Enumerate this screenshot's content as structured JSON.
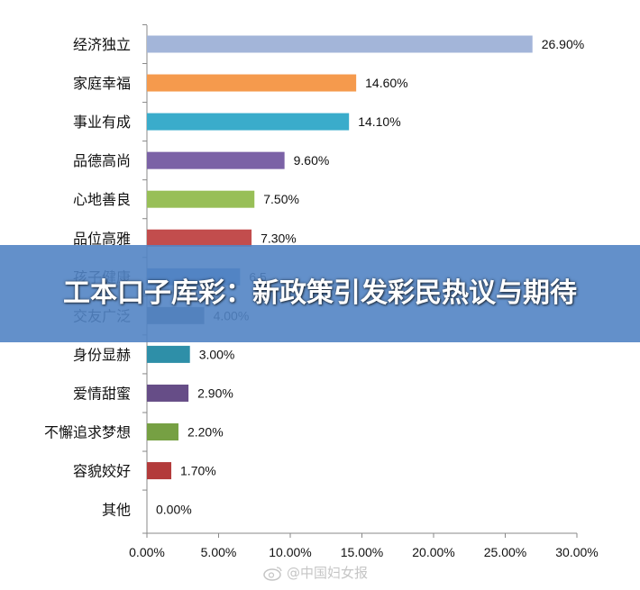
{
  "chart_data": {
    "type": "bar",
    "orientation": "horizontal",
    "categories": [
      "经济独立",
      "家庭幸福",
      "事业有成",
      "品德高尚",
      "心地善良",
      "品位高雅",
      "孩子健康",
      "交友广泛",
      "身份显赫",
      "爱情甜蜜",
      "不懈追求梦想",
      "容貌姣好",
      "其他"
    ],
    "values": [
      26.9,
      14.6,
      14.1,
      9.6,
      7.5,
      7.3,
      6.5,
      4.0,
      3.0,
      2.9,
      2.2,
      1.7,
      0.0
    ],
    "value_labels": [
      "26.90%",
      "14.60%",
      "14.10%",
      "9.60%",
      "7.50%",
      "7.30%",
      "6.5",
      "4.00%",
      "3.00%",
      "2.90%",
      "2.20%",
      "1.70%",
      "0.00%"
    ],
    "colors": [
      "#a3b5d9",
      "#f59a4d",
      "#3aaccb",
      "#7b62a6",
      "#98bf57",
      "#c24d4d",
      "#4f81bd",
      "#5f6f85",
      "#2e8fa8",
      "#664d87",
      "#76a043",
      "#b33b3b",
      "#888888"
    ],
    "xlim": [
      0,
      30
    ],
    "xticks": [
      0,
      5,
      10,
      15,
      20,
      25,
      30
    ],
    "xtick_labels": [
      "0.00%",
      "5.00%",
      "10.00%",
      "15.00%",
      "20.00%",
      "25.00%",
      "30.00%"
    ],
    "grid": false,
    "title": "",
    "xlabel": "",
    "ylabel": ""
  },
  "overlay": {
    "title": "工本口子库彩：新政策引发彩民热议与期待"
  },
  "watermark": {
    "text": "@中国妇女报"
  }
}
